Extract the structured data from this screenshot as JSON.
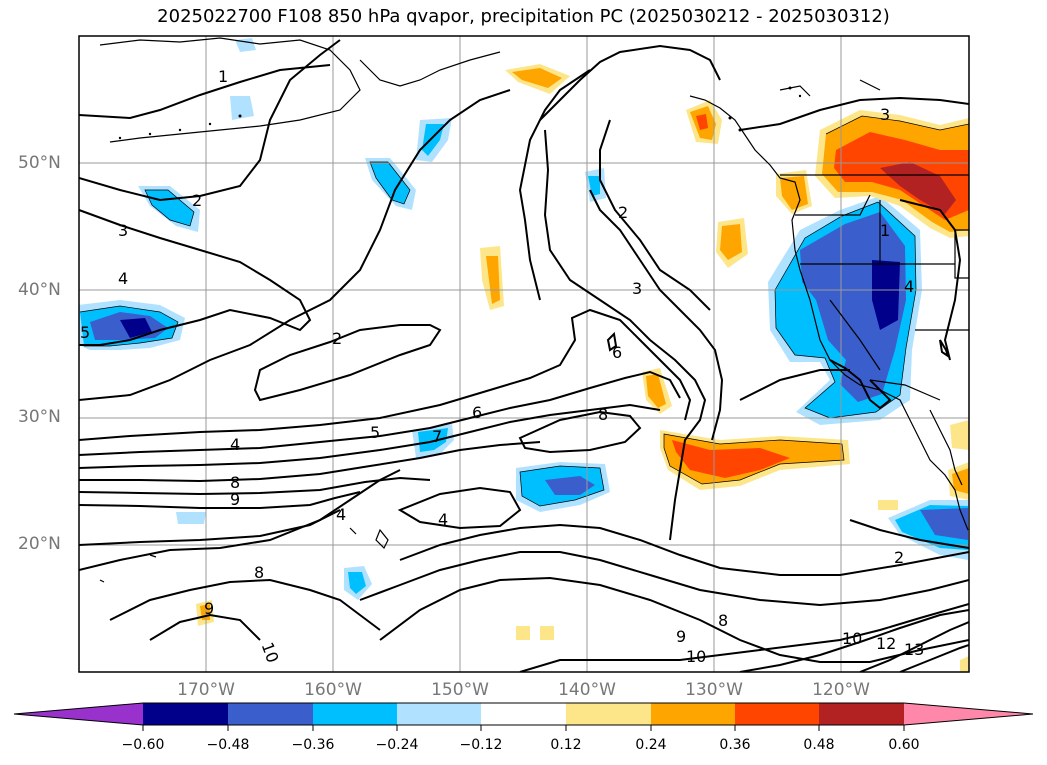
{
  "title": "2025022700 F108 850 hPa qvapor, precipitation PC (2025030212 - 2025030312)",
  "lat_labels": [
    "50°N",
    "40°N",
    "30°N",
    "20°N"
  ],
  "lon_labels": [
    "170°W",
    "160°W",
    "150°W",
    "140°W",
    "130°W",
    "120°W"
  ],
  "colorbar": {
    "ticks": [
      "−0.60",
      "−0.48",
      "−0.36",
      "−0.24",
      "−0.12",
      "0.12",
      "0.24",
      "0.36",
      "0.48",
      "0.60"
    ],
    "colors": [
      "#9932cc",
      "#00008b",
      "#3a5fcd",
      "#00bfff",
      "#b0e2ff",
      "#ffffff",
      "#fde68a",
      "#ffa500",
      "#ff4500",
      "#b22222",
      "#ff88aa"
    ]
  },
  "contour_labels": [
    {
      "text": "1"
    },
    {
      "text": "2"
    },
    {
      "text": "3"
    },
    {
      "text": "4"
    },
    {
      "text": "2"
    },
    {
      "text": "2"
    },
    {
      "text": "3"
    },
    {
      "text": "6"
    },
    {
      "text": "6"
    },
    {
      "text": "8"
    },
    {
      "text": "5"
    },
    {
      "text": "4"
    },
    {
      "text": "8"
    },
    {
      "text": "9"
    },
    {
      "text": "7"
    },
    {
      "text": "4"
    },
    {
      "text": "8"
    },
    {
      "text": "9"
    },
    {
      "text": "10"
    },
    {
      "text": "9"
    },
    {
      "text": "8"
    },
    {
      "text": "10"
    },
    {
      "text": "10"
    },
    {
      "text": "12"
    },
    {
      "text": "13"
    },
    {
      "text": "2"
    },
    {
      "text": "3"
    },
    {
      "text": "4"
    },
    {
      "text": "1"
    },
    {
      "text": "4"
    },
    {
      "text": "5"
    }
  ]
}
